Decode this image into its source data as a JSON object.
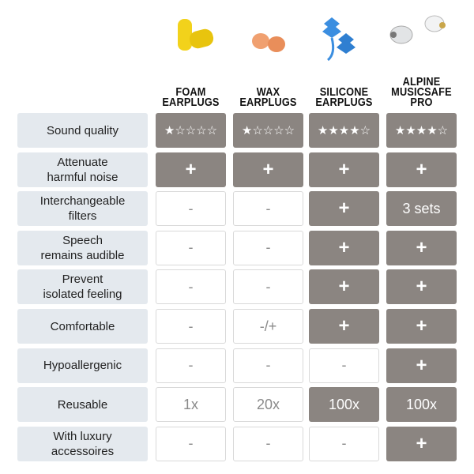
{
  "columns": [
    {
      "title": "FOAM\nEARPLUGS"
    },
    {
      "title": "WAX\nEARPLUGS"
    },
    {
      "title": "SILICONE\nEARPLUGS"
    },
    {
      "title": "ALPINE\nMUSICSAFE\nPRO"
    }
  ],
  "rows": [
    {
      "label": "Sound quality",
      "cells": [
        {
          "text": "★☆☆☆☆",
          "filled": true
        },
        {
          "text": "★☆☆☆☆",
          "filled": true
        },
        {
          "text": "★★★★☆",
          "filled": true
        },
        {
          "text": "★★★★☆",
          "filled": true
        }
      ]
    },
    {
      "label": "Attenuate\nharmful noise",
      "cells": [
        {
          "text": "+",
          "filled": true
        },
        {
          "text": "+",
          "filled": true
        },
        {
          "text": "+",
          "filled": true
        },
        {
          "text": "+",
          "filled": true
        }
      ]
    },
    {
      "label": "Interchangeable\nfilters",
      "cells": [
        {
          "text": "-",
          "filled": false
        },
        {
          "text": "-",
          "filled": false
        },
        {
          "text": "+",
          "filled": true
        },
        {
          "text": "3 sets",
          "filled": true
        }
      ]
    },
    {
      "label": "Speech\nremains audible",
      "cells": [
        {
          "text": "-",
          "filled": false
        },
        {
          "text": "-",
          "filled": false
        },
        {
          "text": "+",
          "filled": true
        },
        {
          "text": "+",
          "filled": true
        }
      ]
    },
    {
      "label": "Prevent\nisolated feeling",
      "cells": [
        {
          "text": "-",
          "filled": false
        },
        {
          "text": "-",
          "filled": false
        },
        {
          "text": "+",
          "filled": true
        },
        {
          "text": "+",
          "filled": true
        }
      ]
    },
    {
      "label": "Comfortable",
      "cells": [
        {
          "text": "-",
          "filled": false
        },
        {
          "text": "-/+",
          "filled": false
        },
        {
          "text": "+",
          "filled": true
        },
        {
          "text": "+",
          "filled": true
        }
      ]
    },
    {
      "label": "Hypoallergenic",
      "cells": [
        {
          "text": "-",
          "filled": false
        },
        {
          "text": "-",
          "filled": false
        },
        {
          "text": "-",
          "filled": false
        },
        {
          "text": "+",
          "filled": true
        }
      ]
    },
    {
      "label": "Reusable",
      "cells": [
        {
          "text": "1x",
          "filled": false
        },
        {
          "text": "20x",
          "filled": false
        },
        {
          "text": "100x",
          "filled": true
        },
        {
          "text": "100x",
          "filled": true
        }
      ]
    },
    {
      "label": "With luxury\naccessoires",
      "cells": [
        {
          "text": "-",
          "filled": false
        },
        {
          "text": "-",
          "filled": false
        },
        {
          "text": "-",
          "filled": false
        },
        {
          "text": "+",
          "filled": true
        }
      ]
    }
  ]
}
